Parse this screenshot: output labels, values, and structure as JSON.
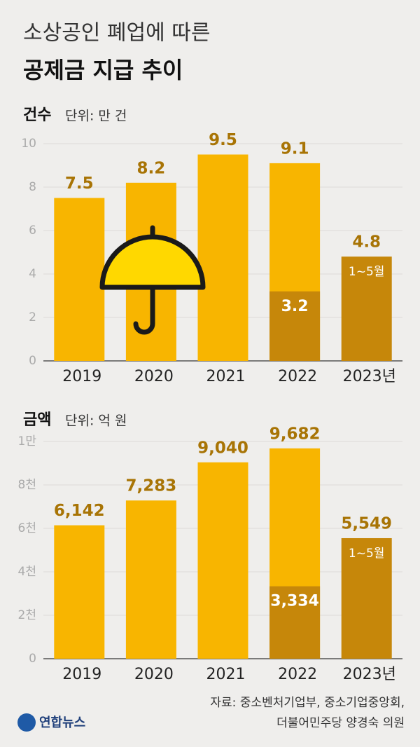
{
  "header": {
    "title_line1": "소상공인 폐업에 따른",
    "title_line2": "공제금 지급 추이"
  },
  "chart_data": [
    {
      "type": "bar",
      "header": "건수",
      "unit": "단위: 만 건",
      "categories": [
        "2019",
        "2020",
        "2021",
        "2022",
        "2023년"
      ],
      "values": [
        7.5,
        8.2,
        9.5,
        9.1,
        4.8
      ],
      "sub_values": [
        null,
        null,
        null,
        3.2,
        null
      ],
      "annotations": [
        null,
        null,
        null,
        null,
        "1~5월"
      ],
      "bar_colors": [
        "#f8b500",
        "#f8b500",
        "#f8b500",
        "#f8b500",
        "#c6870a"
      ],
      "sub_color": "#c6870a",
      "label_color": "#a87405",
      "ylim": [
        0,
        10
      ],
      "yticks": [
        0,
        2,
        4,
        6,
        8,
        10
      ],
      "grid": true
    },
    {
      "type": "bar",
      "header": "금액",
      "unit": "단위: 억 원",
      "categories": [
        "2019",
        "2020",
        "2021",
        "2022",
        "2023년"
      ],
      "values": [
        6142,
        7283,
        9040,
        9682,
        5549
      ],
      "value_labels": [
        "6,142",
        "7,283",
        "9,040",
        "9,682",
        "5,549"
      ],
      "sub_values": [
        null,
        null,
        null,
        3334,
        null
      ],
      "sub_value_labels": [
        null,
        null,
        null,
        "3,334",
        null
      ],
      "annotations": [
        null,
        null,
        null,
        null,
        "1~5월"
      ],
      "bar_colors": [
        "#f8b500",
        "#f8b500",
        "#f8b500",
        "#f8b500",
        "#c6870a"
      ],
      "sub_color": "#c6870a",
      "label_color": "#a87405",
      "ylim": [
        0,
        10000
      ],
      "yticks": [
        0,
        {
          "value": 2000,
          "label": "2천"
        },
        {
          "value": 4000,
          "label": "4천"
        },
        {
          "value": 6000,
          "label": "6천"
        },
        {
          "value": 8000,
          "label": "8천"
        },
        {
          "value": 10000,
          "label": "1만"
        }
      ],
      "grid": true
    }
  ],
  "source": [
    "자료: 중소벤처기업부, 중소기업중앙회,",
    "더불어민주당 양경숙 의원"
  ],
  "logo": "연합뉴스"
}
